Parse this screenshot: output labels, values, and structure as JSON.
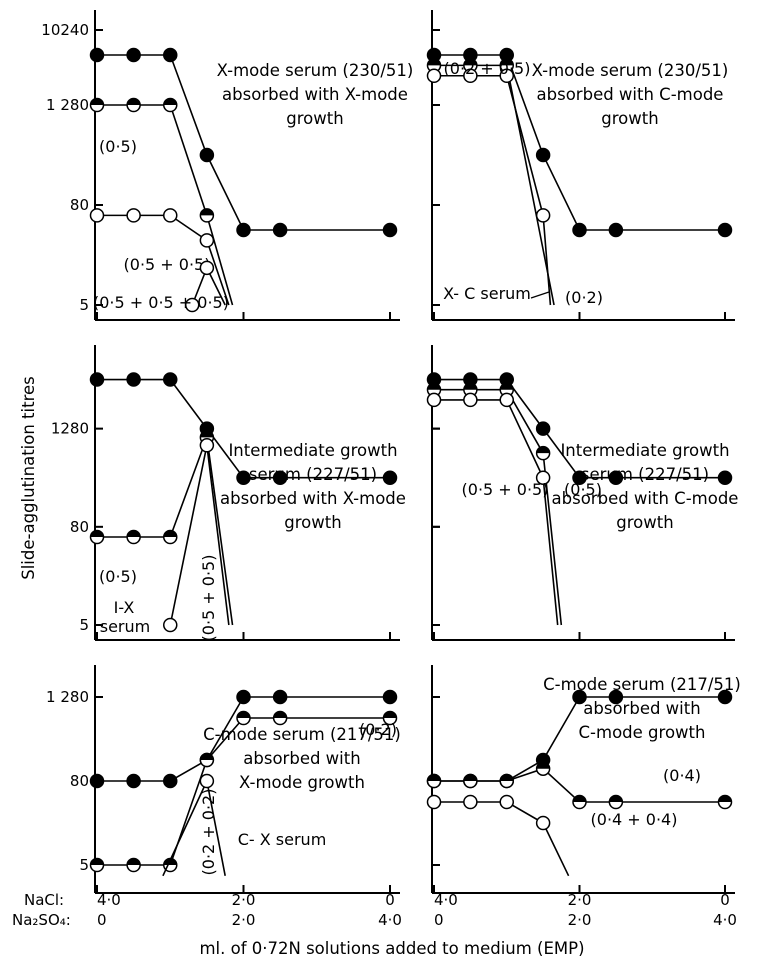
{
  "figure": {
    "y_axis_label": "Slide-agglutination titres",
    "x_axis_label": "ml. of 0·72N solutions added to  medium (EMP)",
    "nacl_label": "NaCl:",
    "na2so4_label": "Na₂SO₄:",
    "x_ticks": [
      {
        "x": 0,
        "nacl": "4·0",
        "na2so4": "0"
      },
      {
        "x": 2,
        "nacl": "2·0",
        "na2so4": "2·0"
      },
      {
        "x": 4,
        "nacl": "0",
        "na2so4": "4·0"
      }
    ]
  },
  "chart_data": [
    {
      "type": "line",
      "panel": "top-left",
      "title_lines": [
        "X-mode serum (230/51)",
        "absorbed with X-mode",
        "growth"
      ],
      "xlim": [
        0,
        4
      ],
      "y_scale": "log2",
      "y_ticks": [
        "10240",
        "1 280",
        "80",
        "5"
      ],
      "y_tick_values": [
        10240,
        1280,
        80,
        5
      ],
      "ylim": [
        5,
        10240
      ],
      "series": [
        {
          "marker": "filled",
          "x": [
            0,
            0.5,
            1.0,
            1.5,
            2.0,
            2.5,
            4.0
          ],
          "y": [
            5120,
            5120,
            5120,
            320,
            40,
            40,
            40
          ]
        },
        {
          "marker": "half",
          "x": [
            0,
            0.5,
            1.0,
            1.5,
            1.85
          ],
          "y": [
            1280,
            1280,
            1280,
            60,
            5
          ],
          "label": "(0·5)"
        },
        {
          "marker": "open",
          "x": [
            0,
            0.5,
            1.0,
            1.5,
            1.8
          ],
          "y": [
            60,
            60,
            60,
            30,
            5
          ],
          "label": "(0·5 + 0·5)"
        },
        {
          "marker": "open",
          "x": [
            1.3,
            1.5,
            1.75
          ],
          "y": [
            5,
            14,
            5
          ],
          "label": "(0·5 + 0·5 + 0·5)"
        }
      ]
    },
    {
      "type": "line",
      "panel": "top-right",
      "title_lines": [
        "X-mode serum (230/51)",
        "absorbed with C-mode",
        "growth"
      ],
      "xlim": [
        0,
        4
      ],
      "y_scale": "log2",
      "y_ticks": [],
      "ylim": [
        5,
        10240
      ],
      "series": [
        {
          "marker": "filled",
          "x": [
            0,
            0.5,
            1.0,
            1.5,
            2.0,
            2.5,
            4.0
          ],
          "y": [
            5120,
            5120,
            5120,
            320,
            40,
            40,
            40
          ]
        },
        {
          "marker": "half",
          "x": [
            0,
            0.5,
            1.0,
            1.65
          ],
          "y": [
            3840,
            3840,
            3840,
            5
          ],
          "label": "(0·2)"
        },
        {
          "marker": "open",
          "x": [
            0,
            0.5,
            1.0,
            1.5,
            1.6
          ],
          "y": [
            2880,
            2880,
            2880,
            60,
            5
          ],
          "label": "(0·2 + 0·5)"
        }
      ],
      "annotations": [
        "X- C serum"
      ]
    },
    {
      "type": "line",
      "panel": "middle-left",
      "title_lines": [
        "Intermediate growth",
        "serum (227/51)",
        "absorbed with X-mode",
        "growth"
      ],
      "xlim": [
        0,
        4
      ],
      "y_scale": "log2",
      "y_ticks": [
        "1280",
        "80",
        "5"
      ],
      "y_tick_values": [
        1280,
        80,
        5
      ],
      "ylim": [
        5,
        10240
      ],
      "series": [
        {
          "marker": "filled",
          "x": [
            0,
            0.5,
            1.0,
            1.5,
            2.0,
            2.5,
            4.0
          ],
          "y": [
            5120,
            5120,
            5120,
            1280,
            320,
            320,
            320
          ]
        },
        {
          "marker": "half",
          "x": [
            0,
            0.5,
            1.0,
            1.5,
            1.85
          ],
          "y": [
            60,
            60,
            60,
            1000,
            5
          ],
          "label": "(0·5)"
        },
        {
          "marker": "open",
          "x": [
            1.0,
            1.5,
            1.8
          ],
          "y": [
            5,
            800,
            5
          ],
          "label": "(0·5 + 0·5)"
        }
      ],
      "annotations": [
        "I-X",
        "serum"
      ]
    },
    {
      "type": "line",
      "panel": "middle-right",
      "title_lines": [
        "Intermediate growth",
        "serum (227/51)",
        "absorbed with C-mode",
        "growth"
      ],
      "xlim": [
        0,
        4
      ],
      "y_scale": "log2",
      "y_ticks": [],
      "ylim": [
        5,
        10240
      ],
      "series": [
        {
          "marker": "filled",
          "x": [
            0,
            0.5,
            1.0,
            1.5,
            2.0,
            2.5,
            4.0
          ],
          "y": [
            5120,
            5120,
            5120,
            1280,
            320,
            320,
            320
          ]
        },
        {
          "marker": "half",
          "x": [
            0,
            0.5,
            1.0,
            1.5,
            1.75
          ],
          "y": [
            3840,
            3840,
            3840,
            640,
            5
          ],
          "label": "(0·5)"
        },
        {
          "marker": "open",
          "x": [
            0,
            0.5,
            1.0,
            1.5,
            1.7
          ],
          "y": [
            2880,
            2880,
            2880,
            320,
            5
          ],
          "label": "(0·5 + 0·5)"
        }
      ]
    },
    {
      "type": "line",
      "panel": "bottom-left",
      "title_lines": [
        "C-mode serum (217/51)",
        "absorbed with",
        "X-mode growth"
      ],
      "xlim": [
        0,
        4
      ],
      "y_scale": "log2",
      "y_ticks": [
        "1 280",
        "80",
        "5"
      ],
      "y_tick_values": [
        1280,
        80,
        5
      ],
      "ylim": [
        3.5,
        3200
      ],
      "series": [
        {
          "marker": "filled",
          "x": [
            0,
            0.5,
            1.0,
            1.5,
            2.0,
            2.5,
            4.0
          ],
          "y": [
            80,
            80,
            80,
            160,
            1280,
            1280,
            1280
          ]
        },
        {
          "marker": "half",
          "x": [
            0,
            0.5,
            1.0,
            1.5,
            2.0,
            2.5,
            4.0
          ],
          "y": [
            5,
            5,
            5,
            160,
            640,
            640,
            640
          ],
          "label": "(0·2)"
        },
        {
          "marker": "open",
          "x": [
            0.9,
            1.5,
            1.75
          ],
          "y": [
            3.5,
            80,
            3.5
          ],
          "label": "(0·2 + 0·2)"
        }
      ],
      "annotations": [
        "C- X serum"
      ]
    },
    {
      "type": "line",
      "panel": "bottom-right",
      "title_lines": [
        "C-mode serum (217/51)",
        "absorbed with",
        "C-mode growth"
      ],
      "xlim": [
        0,
        4
      ],
      "y_scale": "log2",
      "y_ticks": [],
      "ylim": [
        3.5,
        3200
      ],
      "series": [
        {
          "marker": "filled",
          "x": [
            0,
            0.5,
            1.0,
            1.5,
            2.0,
            2.5,
            4.0
          ],
          "y": [
            80,
            80,
            80,
            160,
            1280,
            1280,
            1280
          ]
        },
        {
          "marker": "half",
          "x": [
            0,
            0.5,
            1.0,
            1.5,
            2.0,
            2.5,
            4.0
          ],
          "y": [
            80,
            80,
            80,
            120,
            40,
            40,
            40
          ],
          "label": "(0·4)"
        },
        {
          "marker": "open",
          "x": [
            0,
            0.5,
            1.0,
            1.5,
            1.85
          ],
          "y": [
            40,
            40,
            40,
            20,
            3.5
          ],
          "label": "(0·4 + 0·4)"
        }
      ]
    }
  ]
}
